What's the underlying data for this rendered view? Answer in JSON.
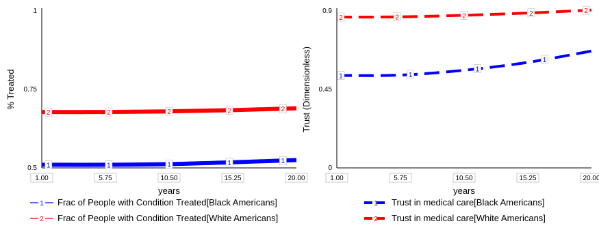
{
  "chart_data": [
    {
      "type": "line",
      "ylabel": "% Treated",
      "xlabel": "years",
      "ylim": [
        0.5,
        1
      ],
      "yticks": [
        "0.5",
        "0.75",
        "1"
      ],
      "xticks": [
        "1.00",
        "5.75",
        "10.50",
        "15.25",
        "20.00"
      ],
      "x": [
        1,
        5.75,
        10.5,
        15.25,
        20
      ],
      "grid": false,
      "series": [
        {
          "name": "Frac of People with Condition Treated[Black Americans]",
          "marker": "1",
          "color": "#0000ff",
          "style": "solid",
          "values": [
            0.51,
            0.51,
            0.512,
            0.518,
            0.525
          ]
        },
        {
          "name": "Frac of People with Condition Treated[White Americans]",
          "marker": "2",
          "color": "#ff0000",
          "style": "solid",
          "values": [
            0.678,
            0.678,
            0.68,
            0.684,
            0.69
          ]
        }
      ]
    },
    {
      "type": "line",
      "ylabel": "Trust (Dimensionless)",
      "xlabel": "years",
      "ylim": [
        0,
        0.9
      ],
      "yticks": [
        "0",
        "0.45",
        "0.9"
      ],
      "xticks": [
        "1.00",
        "5.75",
        "10.50",
        "15.25",
        "20.00"
      ],
      "x": [
        1,
        5.75,
        10.5,
        15.25,
        20
      ],
      "grid": false,
      "series": [
        {
          "name": "Trust in medical care[Black Americans]",
          "marker": "1",
          "color": "#0000ff",
          "style": "dashed",
          "values": [
            0.53,
            0.532,
            0.56,
            0.605,
            0.67
          ]
        },
        {
          "name": "Trust in medical care[White Americans]",
          "marker": "2",
          "color": "#ff0000",
          "style": "dashed",
          "values": [
            0.865,
            0.866,
            0.875,
            0.888,
            0.905
          ]
        }
      ]
    }
  ]
}
